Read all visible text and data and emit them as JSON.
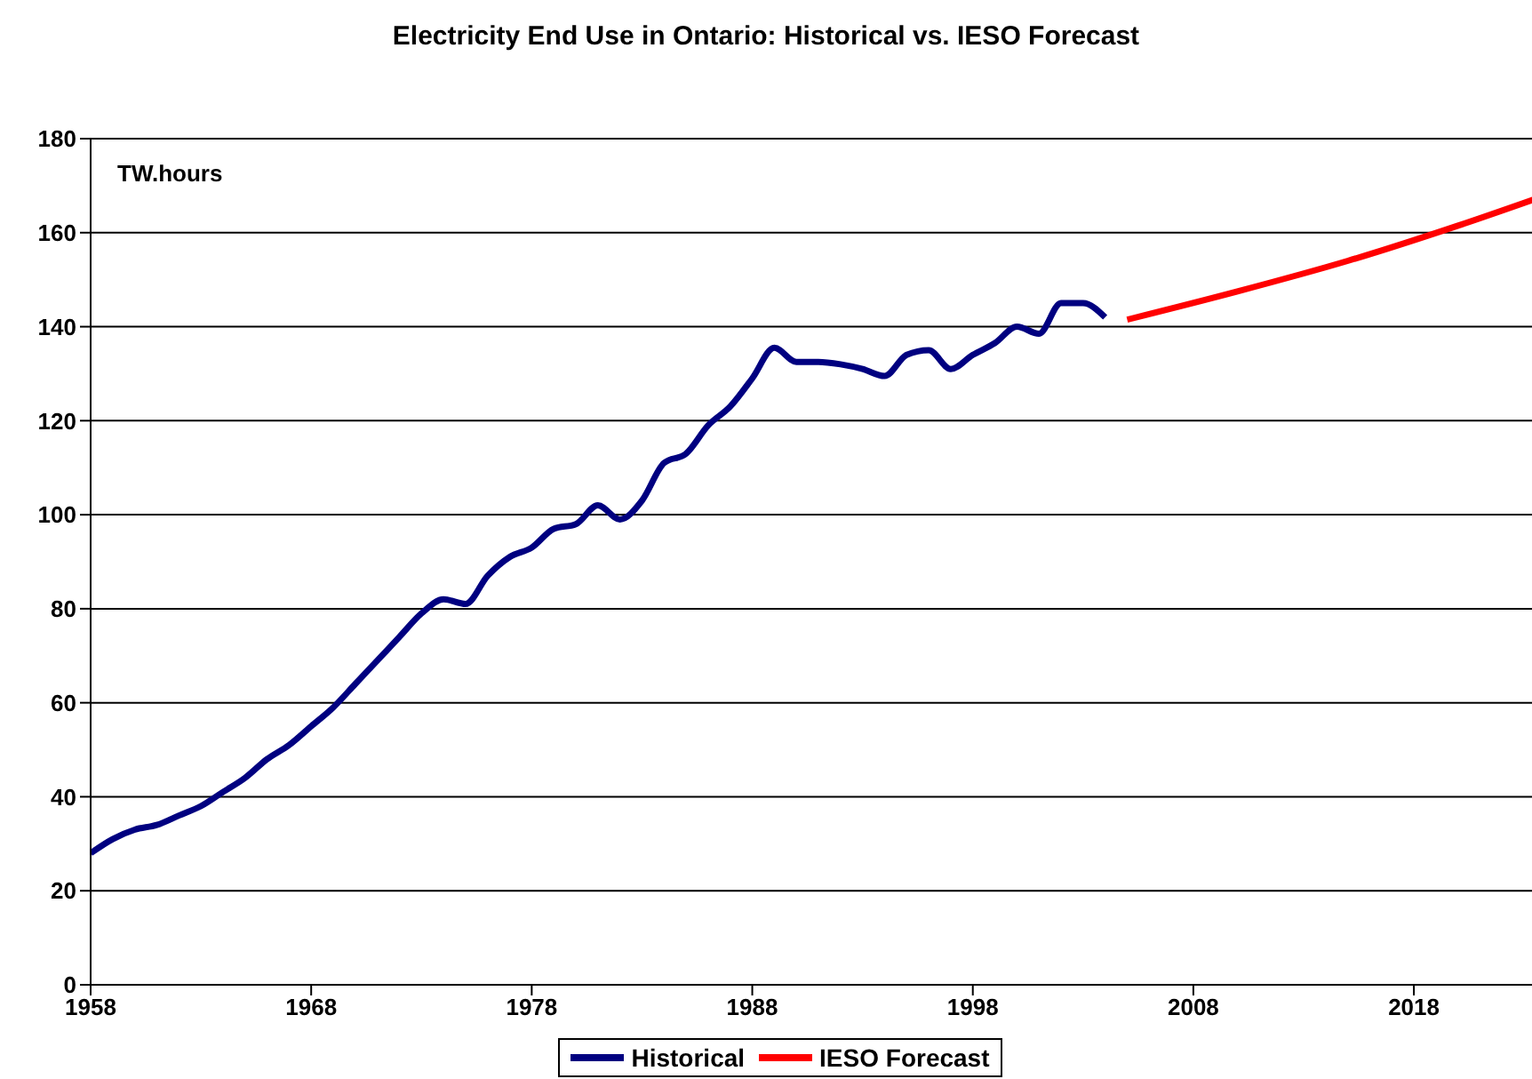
{
  "chart_data": {
    "type": "line",
    "title": "Electricity End Use in Ontario: Historical vs. IESO Forecast",
    "annotations": [
      "TW.hours"
    ],
    "xlim": [
      1958,
      2024
    ],
    "xticks": [
      1958,
      1968,
      1978,
      1988,
      1998,
      2008,
      2018
    ],
    "ylim": [
      0,
      180
    ],
    "yticks": [
      0,
      20,
      40,
      60,
      80,
      100,
      120,
      140,
      160,
      180
    ],
    "grid": "y",
    "legend": "bottom",
    "marker": "none",
    "line_style": "solid",
    "series": [
      {
        "name": "Historical",
        "color": "#000080",
        "x": [
          1958,
          1959,
          1960,
          1961,
          1962,
          1963,
          1964,
          1965,
          1966,
          1967,
          1968,
          1969,
          1970,
          1971,
          1972,
          1973,
          1974,
          1975,
          1976,
          1977,
          1978,
          1979,
          1980,
          1981,
          1982,
          1983,
          1984,
          1985,
          1986,
          1987,
          1988,
          1989,
          1990,
          1991,
          1992,
          1993,
          1994,
          1995,
          1996,
          1997,
          1998,
          1999,
          2000,
          2001,
          2002,
          2003,
          2004
        ],
        "values": [
          28,
          31,
          33,
          34,
          36,
          38,
          41,
          44,
          48,
          51,
          55,
          59,
          64,
          69,
          74,
          79,
          82,
          81,
          87,
          91,
          93,
          97,
          98,
          102,
          99,
          103,
          111,
          113,
          119,
          123,
          129,
          135.5,
          132.5,
          132.5,
          132,
          131,
          129.5,
          134,
          135,
          131,
          134,
          136.5,
          140,
          138.5,
          145,
          145,
          142
        ]
      },
      {
        "name": "IESO Forecast",
        "color": "#ff0000",
        "x": [
          2005,
          2010,
          2015,
          2020,
          2024
        ],
        "values": [
          141.5,
          147.5,
          154,
          161.5,
          168
        ]
      }
    ]
  }
}
